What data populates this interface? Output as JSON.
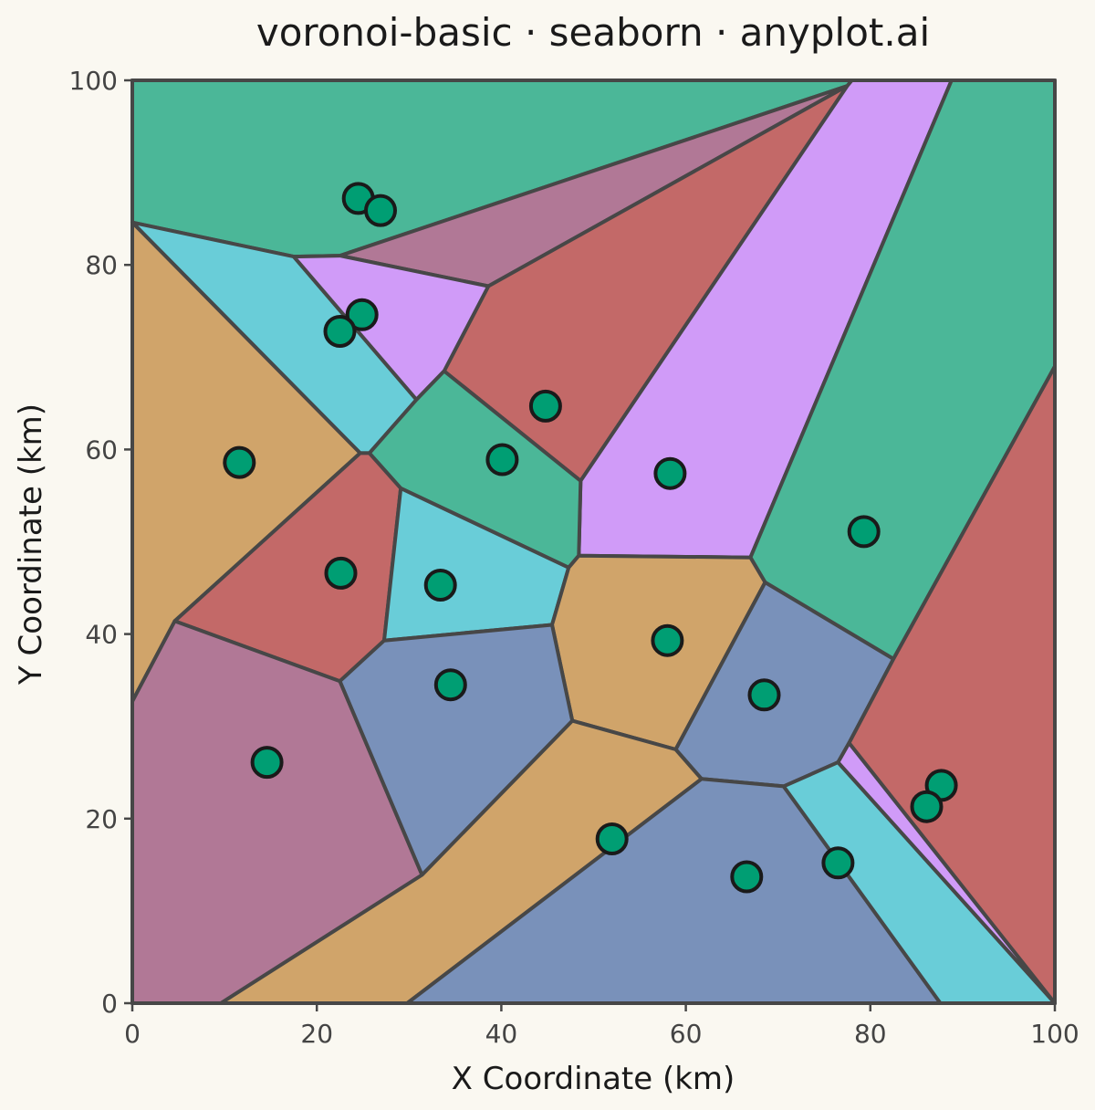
{
  "chart_data": {
    "type": "scatter",
    "title": "voronoi-basic · seaborn · anyplot.ai",
    "xlabel": "X Coordinate (km)",
    "ylabel": "Y Coordinate (km)",
    "xlim": [
      0,
      100
    ],
    "ylim": [
      0,
      100
    ],
    "xticks": [
      0,
      20,
      40,
      60,
      80,
      100
    ],
    "yticks": [
      0,
      20,
      40,
      60,
      80,
      100
    ],
    "grid": false,
    "colors": {
      "seed_fill": "#009E73",
      "seed_edge": "#1a1a1a",
      "cell_edge": "#474747",
      "background": "#FAF8F1"
    },
    "cells": [
      {
        "color": "#4BB798",
        "vertices": [
          [
            0,
            100
          ],
          [
            78,
            100
          ],
          [
            77.5,
            99.4
          ],
          [
            22.5,
            81
          ],
          [
            17.5,
            80.9
          ],
          [
            0,
            84.6
          ]
        ]
      },
      {
        "color": "#B17896",
        "vertices": [
          [
            22.5,
            81
          ],
          [
            77.5,
            99.4
          ],
          [
            38.6,
            77.7
          ]
        ]
      },
      {
        "color": "#C36968",
        "vertices": [
          [
            38.6,
            77.7
          ],
          [
            77.5,
            99.4
          ],
          [
            48.6,
            56.6
          ],
          [
            33.8,
            68.5
          ]
        ]
      },
      {
        "color": "#D09BF8",
        "vertices": [
          [
            77.5,
            99.4
          ],
          [
            78,
            100
          ],
          [
            88.8,
            100
          ],
          [
            67,
            48.3
          ],
          [
            48.4,
            48.5
          ],
          [
            48.6,
            56.6
          ]
        ]
      },
      {
        "color": "#4BB798",
        "vertices": [
          [
            88.8,
            100
          ],
          [
            100,
            100
          ],
          [
            100,
            69
          ],
          [
            82.5,
            37.3
          ],
          [
            68.6,
            45.6
          ],
          [
            67,
            48.3
          ]
        ]
      },
      {
        "color": "#69CDD8",
        "vertices": [
          [
            0,
            84.6
          ],
          [
            17.5,
            80.9
          ],
          [
            30.8,
            65.4
          ],
          [
            25.7,
            59.6
          ],
          [
            24.7,
            59.6
          ]
        ]
      },
      {
        "color": "#D09BF8",
        "vertices": [
          [
            17.5,
            80.9
          ],
          [
            22.5,
            81
          ],
          [
            38.6,
            77.7
          ],
          [
            33.8,
            68.5
          ],
          [
            30.8,
            65.4
          ]
        ]
      },
      {
        "color": "#D0A46A",
        "vertices": [
          [
            0,
            84.6
          ],
          [
            24.7,
            59.6
          ],
          [
            4.6,
            41.4
          ],
          [
            0,
            32.7
          ]
        ]
      },
      {
        "color": "#4BB798",
        "vertices": [
          [
            30.8,
            65.4
          ],
          [
            33.8,
            68.5
          ],
          [
            48.6,
            56.6
          ],
          [
            48.4,
            48.5
          ],
          [
            47.3,
            47.2
          ],
          [
            29.1,
            55.8
          ],
          [
            25.7,
            59.6
          ]
        ]
      },
      {
        "color": "#C36968",
        "vertices": [
          [
            24.7,
            59.6
          ],
          [
            25.7,
            59.6
          ],
          [
            29.1,
            55.8
          ],
          [
            27.3,
            39.3
          ],
          [
            22.5,
            34.9
          ],
          [
            4.6,
            41.4
          ]
        ]
      },
      {
        "color": "#69CDD8",
        "vertices": [
          [
            29.1,
            55.8
          ],
          [
            47.3,
            47.2
          ],
          [
            45.5,
            41
          ],
          [
            27.3,
            39.3
          ]
        ]
      },
      {
        "color": "#D0A46A",
        "vertices": [
          [
            47.3,
            47.2
          ],
          [
            48.4,
            48.5
          ],
          [
            67,
            48.3
          ],
          [
            68.6,
            45.6
          ],
          [
            58.9,
            27.5
          ],
          [
            47.7,
            30.6
          ],
          [
            45.5,
            41
          ]
        ]
      },
      {
        "color": "#B17896",
        "vertices": [
          [
            0,
            32.7
          ],
          [
            4.6,
            41.4
          ],
          [
            22.5,
            34.9
          ],
          [
            31.4,
            13.9
          ],
          [
            9.6,
            0
          ],
          [
            0,
            0
          ]
        ]
      },
      {
        "color": "#7991BA",
        "vertices": [
          [
            22.5,
            34.9
          ],
          [
            27.3,
            39.3
          ],
          [
            45.5,
            41
          ],
          [
            47.7,
            30.6
          ],
          [
            31.4,
            13.9
          ]
        ]
      },
      {
        "color": "#7991BA",
        "vertices": [
          [
            68.6,
            45.6
          ],
          [
            82.5,
            37.3
          ],
          [
            77.7,
            28.2
          ],
          [
            76.5,
            26.1
          ],
          [
            70.6,
            23.5
          ],
          [
            61.7,
            24.3
          ],
          [
            58.9,
            27.5
          ]
        ]
      },
      {
        "color": "#D0A46A",
        "vertices": [
          [
            9.6,
            0
          ],
          [
            29.8,
            0
          ],
          [
            61.7,
            24.3
          ],
          [
            58.9,
            27.5
          ],
          [
            47.7,
            30.6
          ],
          [
            31.4,
            13.9
          ]
        ]
      },
      {
        "color": "#7991BA",
        "vertices": [
          [
            29.8,
            0
          ],
          [
            87.6,
            0
          ],
          [
            70.6,
            23.5
          ],
          [
            61.7,
            24.3
          ]
        ]
      },
      {
        "color": "#69CDD8",
        "vertices": [
          [
            70.6,
            23.5
          ],
          [
            76.5,
            26.1
          ],
          [
            100,
            0
          ],
          [
            87.6,
            0
          ]
        ]
      },
      {
        "color": "#D09BF8",
        "vertices": [
          [
            76.5,
            26.1
          ],
          [
            77.7,
            28.2
          ],
          [
            100,
            0
          ]
        ]
      },
      {
        "color": "#C36968",
        "vertices": [
          [
            77.7,
            28.2
          ],
          [
            82.5,
            37.3
          ],
          [
            100,
            69
          ],
          [
            100,
            0
          ]
        ]
      }
    ],
    "points": [
      {
        "x": 24.5,
        "y": 87.2
      },
      {
        "x": 26.9,
        "y": 85.9
      },
      {
        "x": 24.9,
        "y": 74.6
      },
      {
        "x": 22.5,
        "y": 72.8
      },
      {
        "x": 44.8,
        "y": 64.7
      },
      {
        "x": 11.6,
        "y": 58.6
      },
      {
        "x": 40.1,
        "y": 58.9
      },
      {
        "x": 58.3,
        "y": 57.4
      },
      {
        "x": 79.3,
        "y": 51.1
      },
      {
        "x": 22.6,
        "y": 46.6
      },
      {
        "x": 33.4,
        "y": 45.3
      },
      {
        "x": 58.0,
        "y": 39.3
      },
      {
        "x": 34.5,
        "y": 34.5
      },
      {
        "x": 68.5,
        "y": 33.4
      },
      {
        "x": 14.6,
        "y": 26.1
      },
      {
        "x": 87.7,
        "y": 23.6
      },
      {
        "x": 86.1,
        "y": 21.3
      },
      {
        "x": 52.0,
        "y": 17.8
      },
      {
        "x": 76.5,
        "y": 15.2
      },
      {
        "x": 66.6,
        "y": 13.7
      }
    ]
  }
}
